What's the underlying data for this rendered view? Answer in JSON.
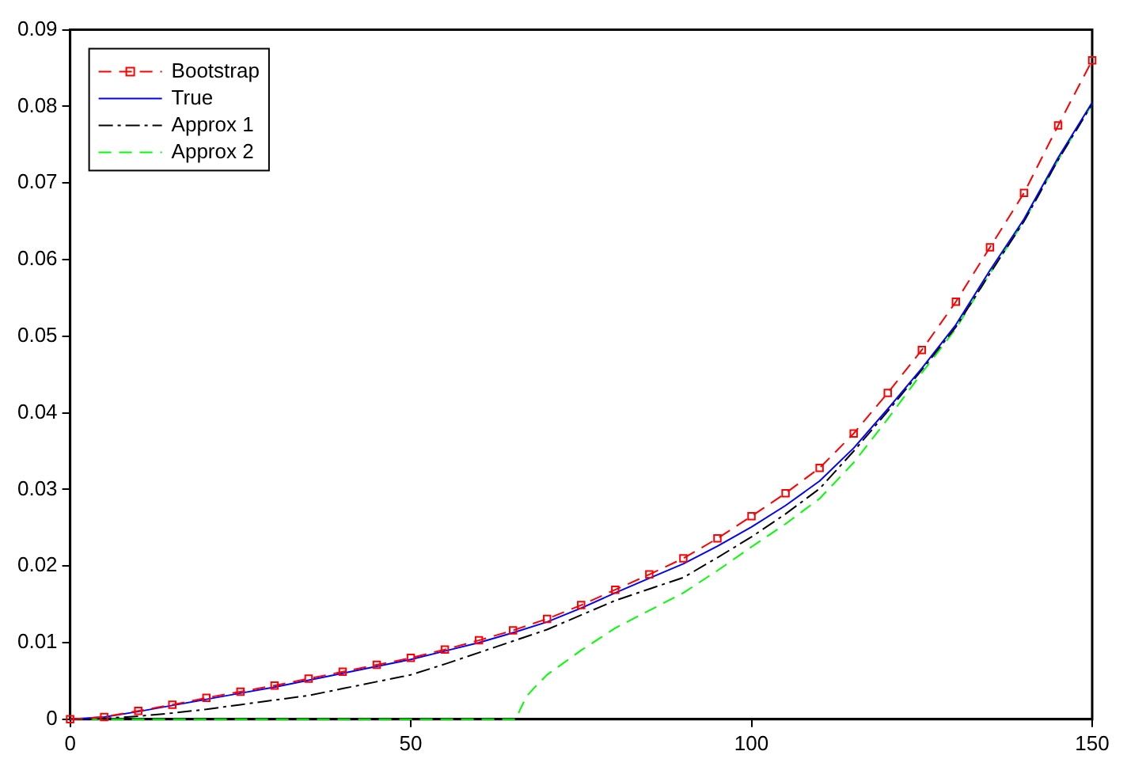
{
  "chart_data": {
    "type": "line",
    "xlim": [
      0,
      150
    ],
    "ylim": [
      0,
      0.09
    ],
    "xticks": [
      0,
      50,
      100,
      150
    ],
    "yticks": [
      0,
      0.01,
      0.02,
      0.03,
      0.04,
      0.05,
      0.06,
      0.07,
      0.08,
      0.09
    ],
    "grid": false,
    "legend": "top left",
    "series": [
      {
        "name": "Bootstrap",
        "color": "#ff0000",
        "marker": "square",
        "line_style": "dashed",
        "x": [
          0,
          5,
          10,
          15,
          20,
          25,
          30,
          35,
          40,
          45,
          50,
          55,
          60,
          65,
          70,
          75,
          80,
          85,
          90,
          95,
          100,
          105,
          110,
          115,
          120,
          125,
          130,
          135,
          140,
          145,
          150
        ],
        "values": [
          0,
          0.0003,
          0.0011,
          0.0019,
          0.0028,
          0.0036,
          0.0044,
          0.0053,
          0.0062,
          0.0071,
          0.008,
          0.0091,
          0.0103,
          0.0116,
          0.0131,
          0.0149,
          0.0169,
          0.0189,
          0.021,
          0.0236,
          0.0265,
          0.0295,
          0.0328,
          0.0373,
          0.0426,
          0.0482,
          0.0545,
          0.0616,
          0.0687,
          0.0775,
          0.086
        ]
      },
      {
        "name": "True",
        "color": "#0000ff",
        "marker": "none",
        "line_style": "solid",
        "x": [
          0,
          5,
          10,
          15,
          20,
          25,
          30,
          35,
          40,
          45,
          50,
          55,
          60,
          65,
          70,
          75,
          80,
          85,
          90,
          95,
          100,
          105,
          110,
          115,
          120,
          125,
          130,
          135,
          140,
          145,
          150
        ],
        "values": [
          0,
          0.0003,
          0.001,
          0.0018,
          0.0026,
          0.0034,
          0.0042,
          0.0051,
          0.006,
          0.0069,
          0.0078,
          0.0089,
          0.01,
          0.0113,
          0.0127,
          0.0145,
          0.0165,
          0.0184,
          0.0203,
          0.0226,
          0.0251,
          0.0279,
          0.0311,
          0.0354,
          0.0405,
          0.0458,
          0.0515,
          0.0586,
          0.0653,
          0.0733,
          0.0805
        ]
      },
      {
        "name": "Approx 1",
        "color": "#000000",
        "marker": "none",
        "line_style": "dashdot",
        "x": [
          0,
          5,
          10,
          15,
          20,
          25,
          30,
          35,
          40,
          45,
          50,
          55,
          60,
          65,
          70,
          75,
          80,
          85,
          90,
          95,
          100,
          105,
          110,
          115,
          120,
          125,
          130,
          135,
          140,
          145,
          150
        ],
        "values": [
          0,
          0.0001,
          0.0004,
          0.0008,
          0.0013,
          0.0019,
          0.0025,
          0.0031,
          0.004,
          0.0049,
          0.0058,
          0.0072,
          0.0087,
          0.0102,
          0.0117,
          0.0136,
          0.0155,
          0.017,
          0.0185,
          0.0211,
          0.0238,
          0.0268,
          0.0301,
          0.035,
          0.0402,
          0.0456,
          0.0512,
          0.0582,
          0.065,
          0.073,
          0.0803
        ]
      },
      {
        "name": "Approx 2",
        "color": "#00ff00",
        "marker": "none",
        "line_style": "dashed",
        "x": [
          0,
          5,
          10,
          15,
          20,
          25,
          30,
          35,
          40,
          45,
          50,
          55,
          60,
          65,
          65.5,
          66,
          67,
          68,
          70,
          75,
          80,
          85,
          90,
          95,
          100,
          105,
          110,
          115,
          120,
          125,
          130,
          135,
          140,
          145,
          150
        ],
        "values": [
          0,
          0,
          0,
          0,
          0,
          0,
          0,
          0,
          0,
          0,
          0,
          0,
          0,
          0,
          0,
          0.0012,
          0.003,
          0.004,
          0.0058,
          0.009,
          0.0119,
          0.0142,
          0.0165,
          0.0194,
          0.0225,
          0.0255,
          0.0288,
          0.0335,
          0.0392,
          0.0452,
          0.051,
          0.0582,
          0.065,
          0.073,
          0.0803
        ]
      }
    ]
  }
}
